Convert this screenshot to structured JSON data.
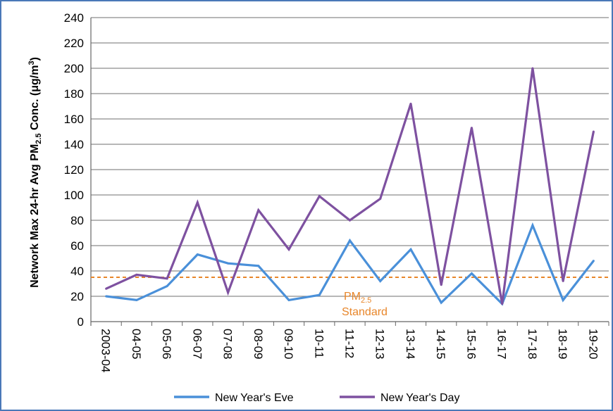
{
  "chart_data": {
    "type": "line",
    "categories": [
      "2003-04",
      "04-05",
      "05-06",
      "06-07",
      "07-08",
      "08-09",
      "09-10",
      "10-11",
      "11-12",
      "12-13",
      "13-14",
      "14-15",
      "15-16",
      "16-17",
      "17-18",
      "18-19",
      "19-20"
    ],
    "series": [
      {
        "name": "New Year's Eve",
        "color": "#4a90d9",
        "values": [
          20,
          17,
          28,
          53,
          46,
          44,
          17,
          21,
          64,
          32,
          57,
          15,
          38,
          14,
          76,
          17,
          48
        ]
      },
      {
        "name": "New Year's Day",
        "color": "#7e51a0",
        "values": [
          26,
          37,
          34,
          94,
          23,
          88,
          57,
          99,
          80,
          97,
          172,
          29,
          153,
          14,
          200,
          32,
          150
        ]
      }
    ],
    "reference_line": {
      "value": 35,
      "color": "#e8862a",
      "label_main": "PM",
      "label_sub": "2.5",
      "label_line2": "Standard"
    },
    "ylabel": {
      "main": "Network Max 24-hr Avg PM",
      "sub": "2.5",
      "rest": " Conc. (μg/m",
      "sup": "3",
      "end": ")"
    },
    "yticks": [
      0,
      20,
      40,
      60,
      80,
      100,
      120,
      140,
      160,
      180,
      200,
      220,
      240
    ],
    "ylim": [
      0,
      240
    ],
    "grid": true,
    "legend_position": "bottom"
  }
}
